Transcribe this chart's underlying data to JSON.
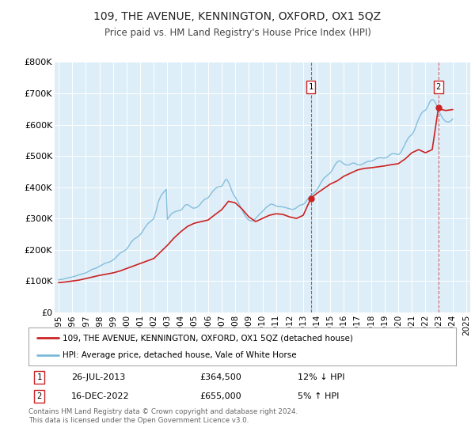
{
  "title": "109, THE AVENUE, KENNINGTON, OXFORD, OX1 5QZ",
  "subtitle": "Price paid vs. HM Land Registry's House Price Index (HPI)",
  "legend_line1": "109, THE AVENUE, KENNINGTON, OXFORD, OX1 5QZ (detached house)",
  "legend_line2": "HPI: Average price, detached house, Vale of White Horse",
  "footnote": "Contains HM Land Registry data © Crown copyright and database right 2024.\nThis data is licensed under the Open Government Licence v3.0.",
  "sale1_label": "1",
  "sale1_date": "26-JUL-2013",
  "sale1_price": "£364,500",
  "sale1_change": "12% ↓ HPI",
  "sale2_label": "2",
  "sale2_date": "16-DEC-2022",
  "sale2_price": "£655,000",
  "sale2_change": "5% ↑ HPI",
  "hpi_color": "#7ab8d9",
  "price_color": "#cc2222",
  "dashed_line_color": "#cc2222",
  "background_color": "#ddeef8",
  "ylim": [
    0,
    800000
  ],
  "yticks": [
    0,
    100000,
    200000,
    300000,
    400000,
    500000,
    600000,
    700000,
    800000
  ],
  "ytick_labels": [
    "£0",
    "£100K",
    "£200K",
    "£300K",
    "£400K",
    "£500K",
    "£600K",
    "£700K",
    "£800K"
  ],
  "sale1_x": 2013.57,
  "sale1_y": 364500,
  "sale2_x": 2022.96,
  "sale2_y": 655000,
  "hpi_years": [
    1995.0,
    1995.08,
    1995.17,
    1995.25,
    1995.33,
    1995.42,
    1995.5,
    1995.58,
    1995.67,
    1995.75,
    1995.83,
    1995.92,
    1996.0,
    1996.08,
    1996.17,
    1996.25,
    1996.33,
    1996.42,
    1996.5,
    1996.58,
    1996.67,
    1996.75,
    1996.83,
    1996.92,
    1997.0,
    1997.08,
    1997.17,
    1997.25,
    1997.33,
    1997.42,
    1997.5,
    1997.58,
    1997.67,
    1997.75,
    1997.83,
    1997.92,
    1998.0,
    1998.08,
    1998.17,
    1998.25,
    1998.33,
    1998.42,
    1998.5,
    1998.58,
    1998.67,
    1998.75,
    1998.83,
    1998.92,
    1999.0,
    1999.08,
    1999.17,
    1999.25,
    1999.33,
    1999.42,
    1999.5,
    1999.58,
    1999.67,
    1999.75,
    1999.83,
    1999.92,
    2000.0,
    2000.08,
    2000.17,
    2000.25,
    2000.33,
    2000.42,
    2000.5,
    2000.58,
    2000.67,
    2000.75,
    2000.83,
    2000.92,
    2001.0,
    2001.08,
    2001.17,
    2001.25,
    2001.33,
    2001.42,
    2001.5,
    2001.58,
    2001.67,
    2001.75,
    2001.83,
    2001.92,
    2002.0,
    2002.08,
    2002.17,
    2002.25,
    2002.33,
    2002.42,
    2002.5,
    2002.58,
    2002.67,
    2002.75,
    2002.83,
    2002.92,
    2003.0,
    2003.08,
    2003.17,
    2003.25,
    2003.33,
    2003.42,
    2003.5,
    2003.58,
    2003.67,
    2003.75,
    2003.83,
    2003.92,
    2004.0,
    2004.08,
    2004.17,
    2004.25,
    2004.33,
    2004.42,
    2004.5,
    2004.58,
    2004.67,
    2004.75,
    2004.83,
    2004.92,
    2005.0,
    2005.08,
    2005.17,
    2005.25,
    2005.33,
    2005.42,
    2005.5,
    2005.58,
    2005.67,
    2005.75,
    2005.83,
    2005.92,
    2006.0,
    2006.08,
    2006.17,
    2006.25,
    2006.33,
    2006.42,
    2006.5,
    2006.58,
    2006.67,
    2006.75,
    2006.83,
    2006.92,
    2007.0,
    2007.08,
    2007.17,
    2007.25,
    2007.33,
    2007.42,
    2007.5,
    2007.58,
    2007.67,
    2007.75,
    2007.83,
    2007.92,
    2008.0,
    2008.08,
    2008.17,
    2008.25,
    2008.33,
    2008.42,
    2008.5,
    2008.58,
    2008.67,
    2008.75,
    2008.83,
    2008.92,
    2009.0,
    2009.08,
    2009.17,
    2009.25,
    2009.33,
    2009.42,
    2009.5,
    2009.58,
    2009.67,
    2009.75,
    2009.83,
    2009.92,
    2010.0,
    2010.08,
    2010.17,
    2010.25,
    2010.33,
    2010.42,
    2010.5,
    2010.58,
    2010.67,
    2010.75,
    2010.83,
    2010.92,
    2011.0,
    2011.08,
    2011.17,
    2011.25,
    2011.33,
    2011.42,
    2011.5,
    2011.58,
    2011.67,
    2011.75,
    2011.83,
    2011.92,
    2012.0,
    2012.08,
    2012.17,
    2012.25,
    2012.33,
    2012.42,
    2012.5,
    2012.58,
    2012.67,
    2012.75,
    2012.83,
    2012.92,
    2013.0,
    2013.08,
    2013.17,
    2013.25,
    2013.33,
    2013.42,
    2013.5,
    2013.58,
    2013.67,
    2013.75,
    2013.83,
    2013.92,
    2014.0,
    2014.08,
    2014.17,
    2014.25,
    2014.33,
    2014.42,
    2014.5,
    2014.58,
    2014.67,
    2014.75,
    2014.83,
    2014.92,
    2015.0,
    2015.08,
    2015.17,
    2015.25,
    2015.33,
    2015.42,
    2015.5,
    2015.58,
    2015.67,
    2015.75,
    2015.83,
    2015.92,
    2016.0,
    2016.08,
    2016.17,
    2016.25,
    2016.33,
    2016.42,
    2016.5,
    2016.58,
    2016.67,
    2016.75,
    2016.83,
    2016.92,
    2017.0,
    2017.08,
    2017.17,
    2017.25,
    2017.33,
    2017.42,
    2017.5,
    2017.58,
    2017.67,
    2017.75,
    2017.83,
    2017.92,
    2018.0,
    2018.08,
    2018.17,
    2018.25,
    2018.33,
    2018.42,
    2018.5,
    2018.58,
    2018.67,
    2018.75,
    2018.83,
    2018.92,
    2019.0,
    2019.08,
    2019.17,
    2019.25,
    2019.33,
    2019.42,
    2019.5,
    2019.58,
    2019.67,
    2019.75,
    2019.83,
    2019.92,
    2020.0,
    2020.08,
    2020.17,
    2020.25,
    2020.33,
    2020.42,
    2020.5,
    2020.58,
    2020.67,
    2020.75,
    2020.83,
    2020.92,
    2021.0,
    2021.08,
    2021.17,
    2021.25,
    2021.33,
    2021.42,
    2021.5,
    2021.58,
    2021.67,
    2021.75,
    2021.83,
    2021.92,
    2022.0,
    2022.08,
    2022.17,
    2022.25,
    2022.33,
    2022.42,
    2022.5,
    2022.58,
    2022.67,
    2022.75,
    2022.83,
    2022.92,
    2023.0,
    2023.08,
    2023.17,
    2023.25,
    2023.33,
    2023.42,
    2023.5,
    2023.58,
    2023.67,
    2023.75,
    2023.83,
    2023.92,
    2024.0
  ],
  "hpi_values": [
    104000,
    104500,
    105000,
    105500,
    106000,
    107000,
    108000,
    109000,
    110000,
    111000,
    111500,
    112000,
    113000,
    114000,
    115000,
    116000,
    117000,
    118500,
    120000,
    121000,
    122000,
    123000,
    124000,
    125000,
    126000,
    128000,
    130000,
    132000,
    134000,
    136000,
    138000,
    139000,
    140000,
    141000,
    143000,
    145000,
    147000,
    149000,
    151000,
    153000,
    155000,
    157000,
    158000,
    159000,
    160000,
    161000,
    163000,
    165000,
    167000,
    170000,
    173000,
    177000,
    181000,
    185000,
    188000,
    191000,
    193000,
    195000,
    197000,
    199000,
    202000,
    207000,
    212000,
    218000,
    224000,
    228000,
    232000,
    235000,
    237000,
    239000,
    242000,
    245000,
    248000,
    253000,
    258000,
    264000,
    270000,
    275000,
    280000,
    284000,
    287000,
    290000,
    293000,
    296000,
    300000,
    312000,
    324000,
    338000,
    352000,
    362000,
    370000,
    376000,
    381000,
    385000,
    389000,
    393000,
    297000,
    302000,
    307000,
    312000,
    316000,
    318000,
    320000,
    322000,
    323000,
    324000,
    325000,
    325000,
    326000,
    330000,
    335000,
    340000,
    343000,
    344000,
    344000,
    342000,
    339000,
    336000,
    334000,
    333000,
    333000,
    334000,
    336000,
    338000,
    341000,
    345000,
    350000,
    354000,
    358000,
    361000,
    363000,
    364000,
    366000,
    371000,
    376000,
    381000,
    386000,
    390000,
    394000,
    397000,
    399000,
    401000,
    402000,
    402000,
    403000,
    408000,
    415000,
    422000,
    425000,
    422000,
    416000,
    408000,
    398000,
    388000,
    380000,
    373000,
    368000,
    362000,
    355000,
    349000,
    342000,
    335000,
    328000,
    320000,
    313000,
    307000,
    302000,
    298000,
    295000,
    293000,
    292000,
    292000,
    293000,
    296000,
    300000,
    304000,
    308000,
    312000,
    316000,
    319000,
    322000,
    326000,
    330000,
    334000,
    337000,
    340000,
    343000,
    345000,
    346000,
    345000,
    344000,
    342000,
    340000,
    339000,
    338000,
    338000,
    338000,
    337000,
    337000,
    336000,
    335000,
    334000,
    333000,
    332000,
    331000,
    330000,
    329000,
    329000,
    330000,
    332000,
    334000,
    337000,
    340000,
    342000,
    343000,
    344000,
    345000,
    348000,
    352000,
    357000,
    362000,
    367000,
    371000,
    374000,
    377000,
    380000,
    383000,
    387000,
    391000,
    397000,
    403000,
    409000,
    416000,
    422000,
    427000,
    431000,
    434000,
    437000,
    440000,
    443000,
    446000,
    451000,
    457000,
    464000,
    470000,
    476000,
    480000,
    483000,
    484000,
    483000,
    480000,
    477000,
    474000,
    472000,
    471000,
    471000,
    471000,
    472000,
    474000,
    476000,
    477000,
    477000,
    476000,
    474000,
    472000,
    471000,
    471000,
    472000,
    473000,
    475000,
    477000,
    479000,
    481000,
    482000,
    483000,
    483000,
    483000,
    484000,
    486000,
    488000,
    490000,
    492000,
    493000,
    494000,
    494000,
    494000,
    494000,
    493000,
    493000,
    494000,
    496000,
    498000,
    501000,
    504000,
    506000,
    507000,
    507000,
    507000,
    506000,
    505000,
    504000,
    506000,
    510000,
    516000,
    523000,
    530000,
    538000,
    545000,
    552000,
    558000,
    562000,
    565000,
    568000,
    573000,
    580000,
    589000,
    599000,
    609000,
    618000,
    626000,
    633000,
    638000,
    642000,
    644000,
    646000,
    651000,
    658000,
    666000,
    673000,
    678000,
    680000,
    679000,
    675000,
    669000,
    661000,
    652000,
    643000,
    635000,
    628000,
    622000,
    617000,
    613000,
    610000,
    609000,
    608000,
    609000,
    611000,
    614000,
    618000
  ],
  "price_years": [
    1995.0,
    1995.5,
    1996.0,
    1996.5,
    1997.0,
    1997.5,
    1998.0,
    1998.5,
    1999.0,
    1999.5,
    2000.0,
    2000.5,
    2001.0,
    2001.5,
    2002.0,
    2002.5,
    2003.0,
    2003.5,
    2004.0,
    2004.5,
    2005.0,
    2005.5,
    2006.0,
    2006.5,
    2007.0,
    2007.5,
    2008.0,
    2008.5,
    2009.0,
    2009.5,
    2010.0,
    2010.5,
    2011.0,
    2011.5,
    2012.0,
    2012.5,
    2013.0,
    2013.57,
    2014.0,
    2014.5,
    2015.0,
    2015.5,
    2016.0,
    2016.5,
    2017.0,
    2017.5,
    2018.0,
    2018.5,
    2019.0,
    2019.5,
    2020.0,
    2020.5,
    2021.0,
    2021.5,
    2022.0,
    2022.5,
    2022.96,
    2023.0,
    2023.5,
    2024.0
  ],
  "price_values": [
    95000,
    97000,
    100000,
    103000,
    108000,
    113000,
    118000,
    122000,
    126000,
    132000,
    140000,
    148000,
    156000,
    164000,
    172000,
    193000,
    214000,
    238000,
    258000,
    275000,
    285000,
    290000,
    295000,
    312000,
    328000,
    355000,
    350000,
    330000,
    305000,
    290000,
    300000,
    310000,
    315000,
    313000,
    305000,
    300000,
    310000,
    364500,
    380000,
    395000,
    410000,
    420000,
    435000,
    445000,
    455000,
    460000,
    462000,
    465000,
    468000,
    472000,
    475000,
    490000,
    510000,
    520000,
    510000,
    520000,
    655000,
    650000,
    645000,
    648000
  ],
  "xtick_years": [
    1995,
    1996,
    1997,
    1998,
    1999,
    2000,
    2001,
    2002,
    2003,
    2004,
    2005,
    2006,
    2007,
    2008,
    2009,
    2010,
    2011,
    2012,
    2013,
    2014,
    2015,
    2016,
    2017,
    2018,
    2019,
    2020,
    2021,
    2022,
    2023,
    2024,
    2025
  ]
}
